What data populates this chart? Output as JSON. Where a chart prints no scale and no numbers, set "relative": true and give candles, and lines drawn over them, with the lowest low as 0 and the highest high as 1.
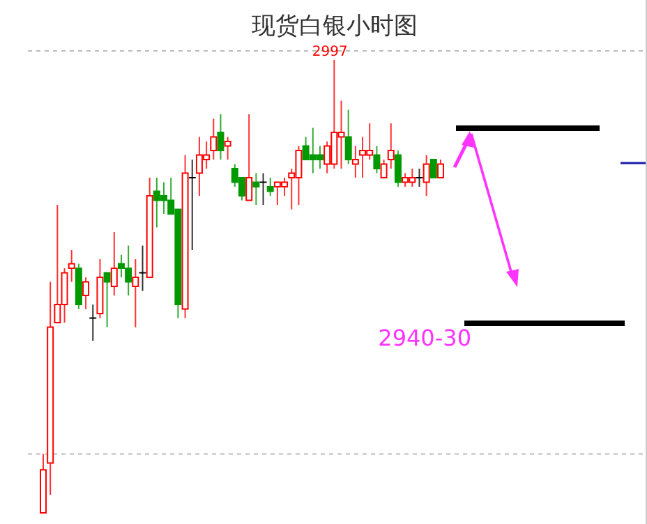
{
  "chart_data": {
    "type": "candlestick",
    "title": "现货白银小时图",
    "relative": true,
    "categories": [
      null,
      null,
      null,
      null,
      null,
      null,
      null,
      null,
      null,
      null,
      null,
      null,
      null,
      null,
      null,
      null,
      null,
      null,
      null,
      null,
      null,
      null,
      null,
      null,
      null,
      null,
      null,
      null,
      null,
      null,
      null,
      null,
      null,
      null,
      null,
      null,
      null,
      null,
      null,
      null,
      null,
      null,
      null,
      null,
      null,
      null,
      null,
      null,
      null,
      null,
      null,
      null,
      null,
      null,
      null,
      null,
      null
    ],
    "ohlc": [
      [
        0,
        0.13,
        0,
        0.095
      ],
      [
        0.11,
        0.51,
        0.04,
        0.41
      ],
      [
        0.42,
        0.68,
        0.42,
        0.46
      ],
      [
        0.46,
        0.54,
        0.42,
        0.53
      ],
      [
        0.54,
        0.58,
        0.51,
        0.55
      ],
      [
        0.54,
        0.55,
        0.45,
        0.46
      ],
      [
        0.48,
        0.52,
        0.45,
        0.51
      ],
      [
        0.43,
        0.46,
        0.38,
        0.43
      ],
      [
        0.44,
        0.56,
        0.43,
        0.52
      ],
      [
        0.53,
        0.53,
        0.41,
        0.51
      ],
      [
        0.5,
        0.62,
        0.48,
        0.54
      ],
      [
        0.55,
        0.57,
        0.52,
        0.54
      ],
      [
        0.54,
        0.59,
        0.48,
        0.51
      ],
      [
        0.5,
        0.56,
        0.41,
        0.52
      ],
      [
        0.53,
        0.59,
        0.49,
        0.53
      ],
      [
        0.52,
        0.74,
        0.52,
        0.7
      ],
      [
        0.71,
        0.74,
        0.63,
        0.69
      ],
      [
        0.7,
        0.73,
        0.66,
        0.69
      ],
      [
        0.69,
        0.74,
        0.66,
        0.66
      ],
      [
        0.67,
        0.67,
        0.43,
        0.46
      ],
      [
        0.45,
        0.79,
        0.43,
        0.75
      ],
      [
        0.74,
        0.78,
        0.58,
        0.74
      ],
      [
        0.75,
        0.83,
        0.7,
        0.79
      ],
      [
        0.78,
        0.82,
        0.76,
        0.79
      ],
      [
        0.8,
        0.87,
        0.78,
        0.83
      ],
      [
        0.84,
        0.88,
        0.78,
        0.8
      ],
      [
        0.81,
        0.83,
        0.78,
        0.82
      ],
      [
        0.76,
        0.77,
        0.72,
        0.73
      ],
      [
        0.74,
        0.74,
        0.69,
        0.7
      ],
      [
        0.69,
        0.88,
        0.69,
        0.74
      ],
      [
        0.73,
        0.75,
        0.68,
        0.72
      ],
      [
        0.73,
        0.75,
        0.68,
        0.73
      ],
      [
        0.72,
        0.74,
        0.7,
        0.71
      ],
      [
        0.72,
        0.73,
        0.68,
        0.73
      ],
      [
        0.72,
        0.74,
        0.7,
        0.73
      ],
      [
        0.74,
        0.76,
        0.67,
        0.75
      ],
      [
        0.74,
        0.81,
        0.68,
        0.8
      ],
      [
        0.81,
        0.83,
        0.78,
        0.78
      ],
      [
        0.79,
        0.85,
        0.75,
        0.78
      ],
      [
        0.79,
        0.81,
        0.76,
        0.78
      ],
      [
        0.77,
        0.82,
        0.75,
        0.81
      ],
      [
        0.77,
        1,
        0.76,
        0.84
      ],
      [
        0.83,
        0.91,
        0.76,
        0.84
      ],
      [
        0.83,
        0.89,
        0.77,
        0.78
      ],
      [
        0.77,
        0.81,
        0.74,
        0.78
      ],
      [
        0.79,
        0.83,
        0.74,
        0.8
      ],
      [
        0.79,
        0.86,
        0.78,
        0.8
      ],
      [
        0.79,
        0.81,
        0.75,
        0.76
      ],
      [
        0.74,
        0.78,
        0.74,
        0.77
      ],
      [
        0.78,
        0.86,
        0.76,
        0.8
      ],
      [
        0.79,
        0.8,
        0.72,
        0.73
      ],
      [
        0.73,
        0.75,
        0.72,
        0.74
      ],
      [
        0.73,
        0.76,
        0.72,
        0.74
      ],
      [
        0.74,
        0.76,
        0.72,
        0.74
      ],
      [
        0.73,
        0.79,
        0.7,
        0.77
      ],
      [
        0.78,
        0.78,
        0.74,
        0.74
      ],
      [
        0.74,
        0.78,
        0.74,
        0.77
      ]
    ],
    "colors": [
      "#ff0000",
      "#ff0000",
      "#ff0000",
      "#ff0000",
      "#ff0000",
      "#009900",
      "#ff0000",
      "#000000",
      "#ff0000",
      "#009900",
      "#ff0000",
      "#009900",
      "#009900",
      "#ff0000",
      "#000000",
      "#ff0000",
      "#009900",
      "#009900",
      "#009900",
      "#009900",
      "#ff0000",
      "#000000",
      "#ff0000",
      "#ff0000",
      "#ff0000",
      "#009900",
      "#ff0000",
      "#009900",
      "#009900",
      "#ff0000",
      "#009900",
      "#000000",
      "#009900",
      "#ff0000",
      "#ff0000",
      "#ff0000",
      "#ff0000",
      "#009900",
      "#009900",
      "#009900",
      "#ff0000",
      "#ff0000",
      "#ff0000",
      "#009900",
      "#ff0000",
      "#ff0000",
      "#ff0000",
      "#009900",
      "#ff0000",
      "#ff0000",
      "#009900",
      "#ff0000",
      "#ff0000",
      "#000000",
      "#ff0000",
      "#009900",
      "#ff0000"
    ],
    "annotations": [
      {
        "text": "2997",
        "y": 1
      },
      "2940-30"
    ],
    "ref_lines": [
      {
        "axis": "y",
        "value": 1.02,
        "line_style": "dashed",
        "color": "#bbbbbb"
      },
      {
        "axis": "y",
        "value": 0.13,
        "line_style": "dashed",
        "color": "#bbbbbb"
      }
    ]
  }
}
